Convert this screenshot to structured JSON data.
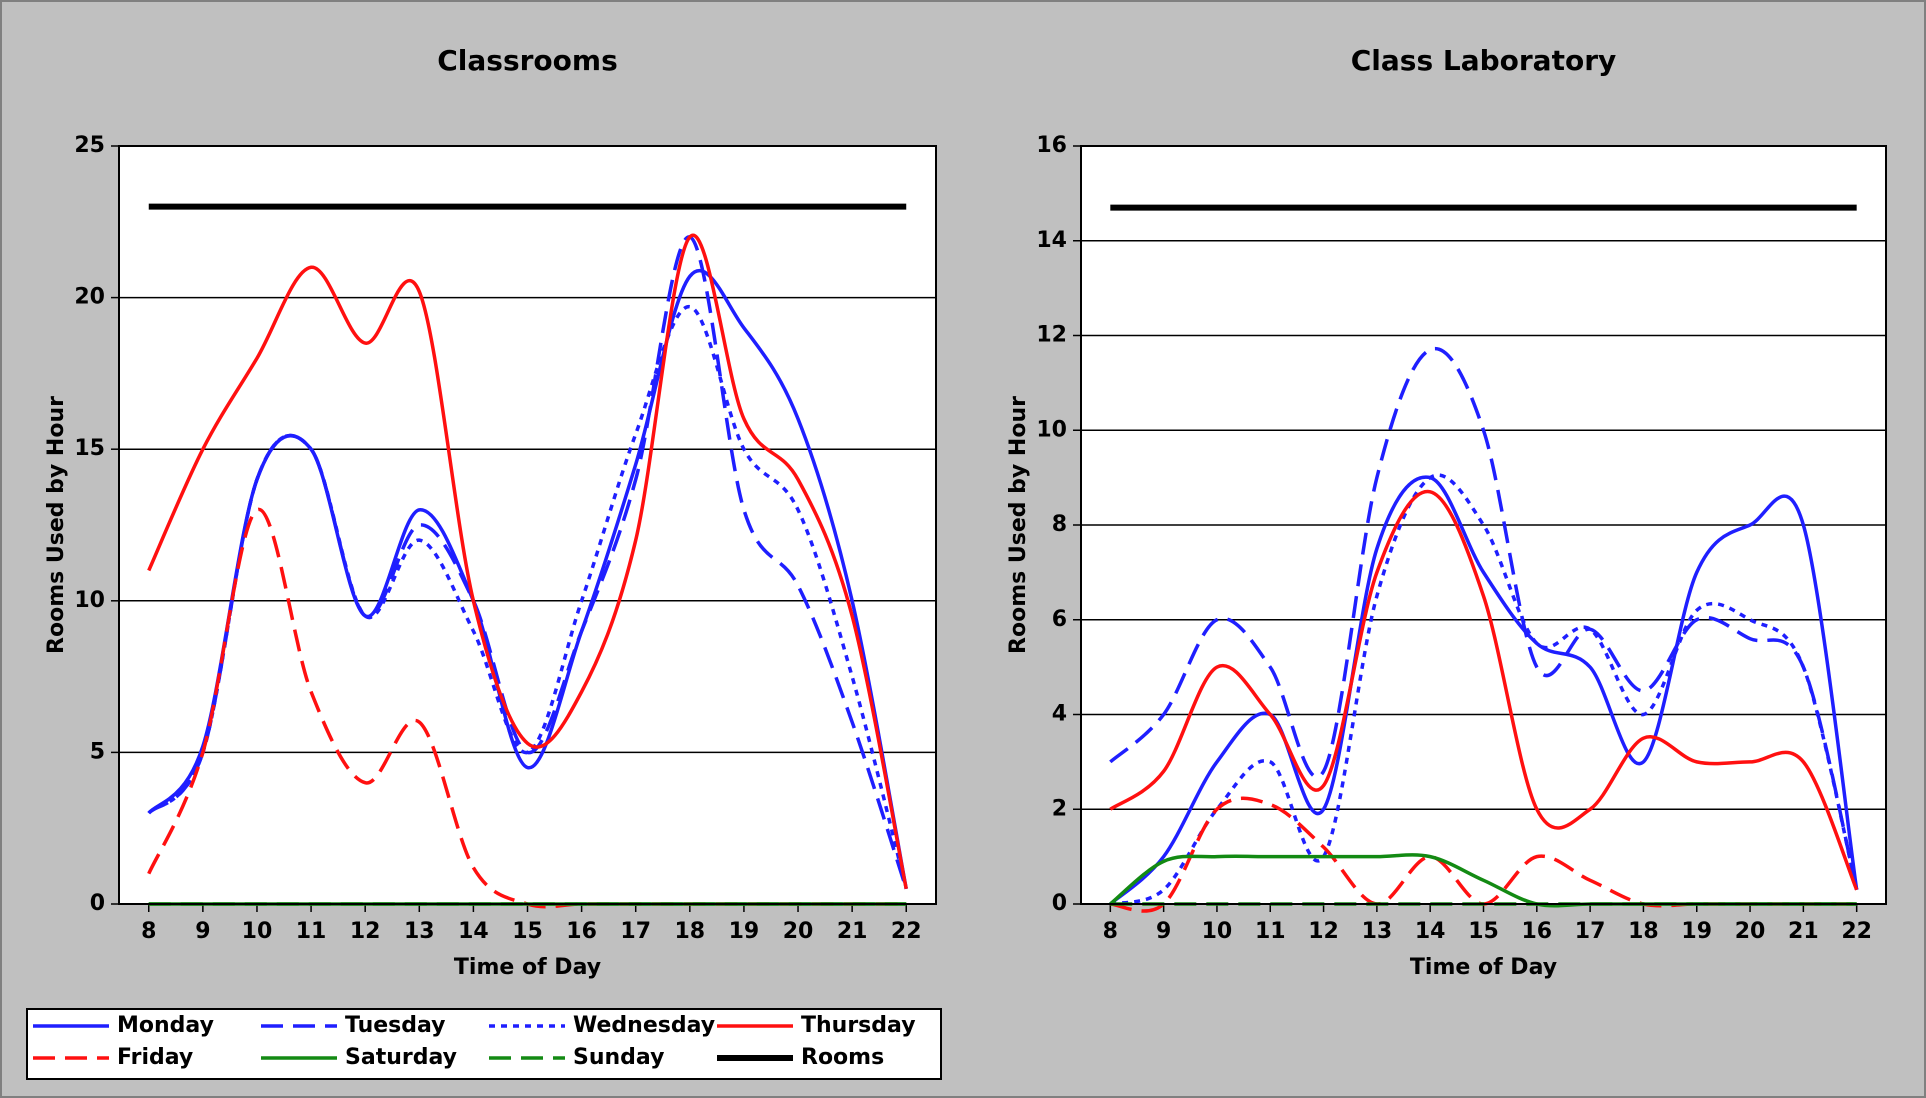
{
  "chart_data": [
    {
      "type": "line",
      "title": "Classrooms",
      "xlabel": "Time of Day",
      "ylabel": "Rooms Used by Hour",
      "x": [
        8,
        9,
        10,
        11,
        12,
        13,
        14,
        15,
        16,
        17,
        18,
        19,
        20,
        21,
        22
      ],
      "xlim": [
        7.45,
        22.55
      ],
      "xticks": [
        8,
        9,
        10,
        11,
        12,
        13,
        14,
        15,
        16,
        17,
        18,
        19,
        20,
        21,
        22
      ],
      "ylim": [
        0,
        25
      ],
      "yticks": [
        0,
        5,
        10,
        15,
        20,
        25
      ],
      "grid": true,
      "series": [
        {
          "name": "Monday",
          "color": "#1f1fff",
          "dash": "solid",
          "values": [
            3,
            5.2,
            14,
            15,
            9.5,
            13,
            10,
            4.5,
            9,
            14.5,
            20.7,
            19,
            16,
            10,
            0.5
          ]
        },
        {
          "name": "Tuesday",
          "color": "#1f1fff",
          "dash": "long",
          "values": [
            3,
            5,
            14,
            15,
            9.5,
            12.5,
            10,
            5,
            9,
            14,
            22,
            13,
            10.5,
            6,
            0.5
          ]
        },
        {
          "name": "Wednesday",
          "color": "#1f1fff",
          "dash": "dot",
          "values": [
            3,
            5,
            14,
            15,
            9.5,
            12,
            9,
            5,
            10,
            15.5,
            19.7,
            15,
            13,
            7.5,
            0.5
          ]
        },
        {
          "name": "Thursday",
          "color": "#ff1010",
          "dash": "solid",
          "values": [
            11,
            15,
            18,
            21,
            18.5,
            20.2,
            10,
            5.3,
            7,
            12,
            22,
            16,
            14,
            9.5,
            0.5
          ]
        },
        {
          "name": "Friday",
          "color": "#ff1010",
          "dash": "long",
          "values": [
            1,
            5,
            13,
            7,
            4,
            6,
            1.2,
            0,
            0,
            0,
            0,
            0,
            0,
            0,
            0
          ]
        },
        {
          "name": "Saturday",
          "color": "#138a13",
          "dash": "solid",
          "values": [
            0,
            0,
            0,
            0,
            0,
            0,
            0,
            0,
            0,
            0,
            0,
            0,
            0,
            0,
            0
          ]
        },
        {
          "name": "Sunday",
          "color": "#138a13",
          "dash": "long",
          "values": [
            0,
            0,
            0,
            0,
            0,
            0,
            0,
            0,
            0,
            0,
            0,
            0,
            0,
            0,
            0
          ]
        },
        {
          "name": "Rooms",
          "color": "#000000",
          "dash": "thick",
          "values": [
            23,
            23,
            23,
            23,
            23,
            23,
            23,
            23,
            23,
            23,
            23,
            23,
            23,
            23,
            23
          ]
        }
      ]
    },
    {
      "type": "line",
      "title": "Class Laboratory",
      "xlabel": "Time of Day",
      "ylabel": "Rooms Used by Hour",
      "x": [
        8,
        9,
        10,
        11,
        12,
        13,
        14,
        15,
        16,
        17,
        18,
        19,
        20,
        21,
        22
      ],
      "xlim": [
        7.45,
        22.55
      ],
      "xticks": [
        8,
        9,
        10,
        11,
        12,
        13,
        14,
        15,
        16,
        17,
        18,
        19,
        20,
        21,
        22
      ],
      "ylim": [
        0,
        16
      ],
      "yticks": [
        0,
        2,
        4,
        6,
        8,
        10,
        12,
        14,
        16
      ],
      "grid": true,
      "series": [
        {
          "name": "Monday",
          "color": "#1f1fff",
          "dash": "solid",
          "values": [
            0,
            1,
            3,
            4,
            2,
            7.5,
            9,
            7,
            5.5,
            5,
            3,
            7,
            8,
            8,
            0.3
          ]
        },
        {
          "name": "Tuesday",
          "color": "#1f1fff",
          "dash": "long",
          "values": [
            3,
            4,
            6,
            5,
            2.8,
            9,
            11.7,
            10,
            5,
            5.8,
            4.5,
            6,
            5.6,
            5,
            0.3
          ]
        },
        {
          "name": "Wednesday",
          "color": "#1f1fff",
          "dash": "dot",
          "values": [
            0,
            0.3,
            2,
            3,
            1,
            6.5,
            9,
            8,
            5.5,
            5.8,
            4,
            6.2,
            6,
            5,
            0.3
          ]
        },
        {
          "name": "Thursday",
          "color": "#ff1010",
          "dash": "solid",
          "values": [
            2,
            2.8,
            5,
            4,
            2.5,
            7,
            8.7,
            6.5,
            2,
            2,
            3.5,
            3,
            3,
            3,
            0.3
          ]
        },
        {
          "name": "Friday",
          "color": "#ff1010",
          "dash": "long",
          "values": [
            0,
            0,
            2,
            2.1,
            1.2,
            0,
            1,
            0,
            1,
            0.5,
            0,
            0,
            0,
            0,
            0
          ]
        },
        {
          "name": "Saturday",
          "color": "#138a13",
          "dash": "solid",
          "values": [
            0,
            0.9,
            1,
            1,
            1,
            1,
            1,
            0.5,
            0,
            0,
            0,
            0,
            0,
            0,
            0
          ]
        },
        {
          "name": "Sunday",
          "color": "#138a13",
          "dash": "long",
          "values": [
            0,
            0,
            0,
            0,
            0,
            0,
            0,
            0,
            0,
            0,
            0,
            0,
            0,
            0,
            0
          ]
        },
        {
          "name": "Rooms",
          "color": "#000000",
          "dash": "thick",
          "values": [
            14.7,
            14.7,
            14.7,
            14.7,
            14.7,
            14.7,
            14.7,
            14.7,
            14.7,
            14.7,
            14.7,
            14.7,
            14.7,
            14.7,
            14.7
          ]
        }
      ]
    }
  ]
}
